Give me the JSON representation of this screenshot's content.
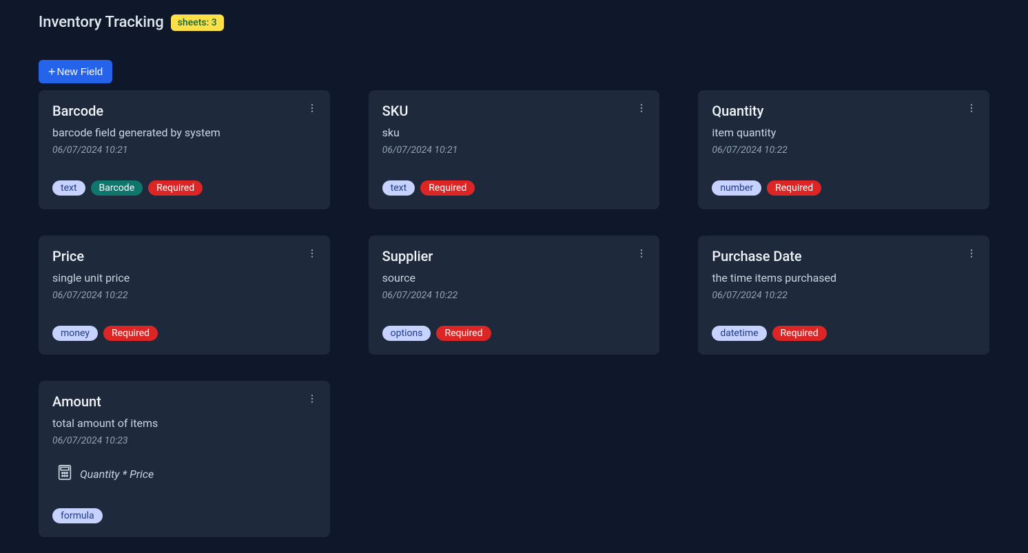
{
  "header": {
    "title": "Inventory Tracking",
    "sheets_badge": "sheets: 3"
  },
  "new_field_button": "New Field",
  "colors": {
    "background": "#0f172a",
    "card_bg": "#1e293b",
    "primary_button": "#2563eb",
    "sheets_badge_bg": "#fde047",
    "sheets_badge_text": "#166534",
    "type_badge_bg": "#c7d2fe",
    "type_badge_text": "#1e3a8a",
    "barcode_badge_bg": "#0f766e",
    "required_badge_bg": "#dc2626",
    "text_primary": "#f1f5f9",
    "text_secondary": "#cbd5e1",
    "text_muted": "#94a3b8"
  },
  "fields": [
    {
      "title": "Barcode",
      "description": "barcode field generated by system",
      "timestamp": "06/07/2024 10:21",
      "type": "text",
      "extra_badge": "Barcode",
      "required": "Required",
      "has_formula": false
    },
    {
      "title": "SKU",
      "description": "sku",
      "timestamp": "06/07/2024 10:21",
      "type": "text",
      "extra_badge": null,
      "required": "Required",
      "has_formula": false
    },
    {
      "title": "Quantity",
      "description": "item quantity",
      "timestamp": "06/07/2024 10:22",
      "type": "number",
      "extra_badge": null,
      "required": "Required",
      "has_formula": false
    },
    {
      "title": "Price",
      "description": "single unit price",
      "timestamp": "06/07/2024 10:22",
      "type": "money",
      "extra_badge": null,
      "required": "Required",
      "has_formula": false
    },
    {
      "title": "Supplier",
      "description": "source",
      "timestamp": "06/07/2024 10:22",
      "type": "options",
      "extra_badge": null,
      "required": "Required",
      "has_formula": false
    },
    {
      "title": "Purchase Date",
      "description": "the time items purchased",
      "timestamp": "06/07/2024 10:22",
      "type": "datetime",
      "extra_badge": null,
      "required": "Required",
      "has_formula": false
    },
    {
      "title": "Amount",
      "description": "total amount of items",
      "timestamp": "06/07/2024 10:23",
      "type": "formula",
      "extra_badge": null,
      "required": null,
      "has_formula": true,
      "formula": "Quantity * Price"
    }
  ]
}
